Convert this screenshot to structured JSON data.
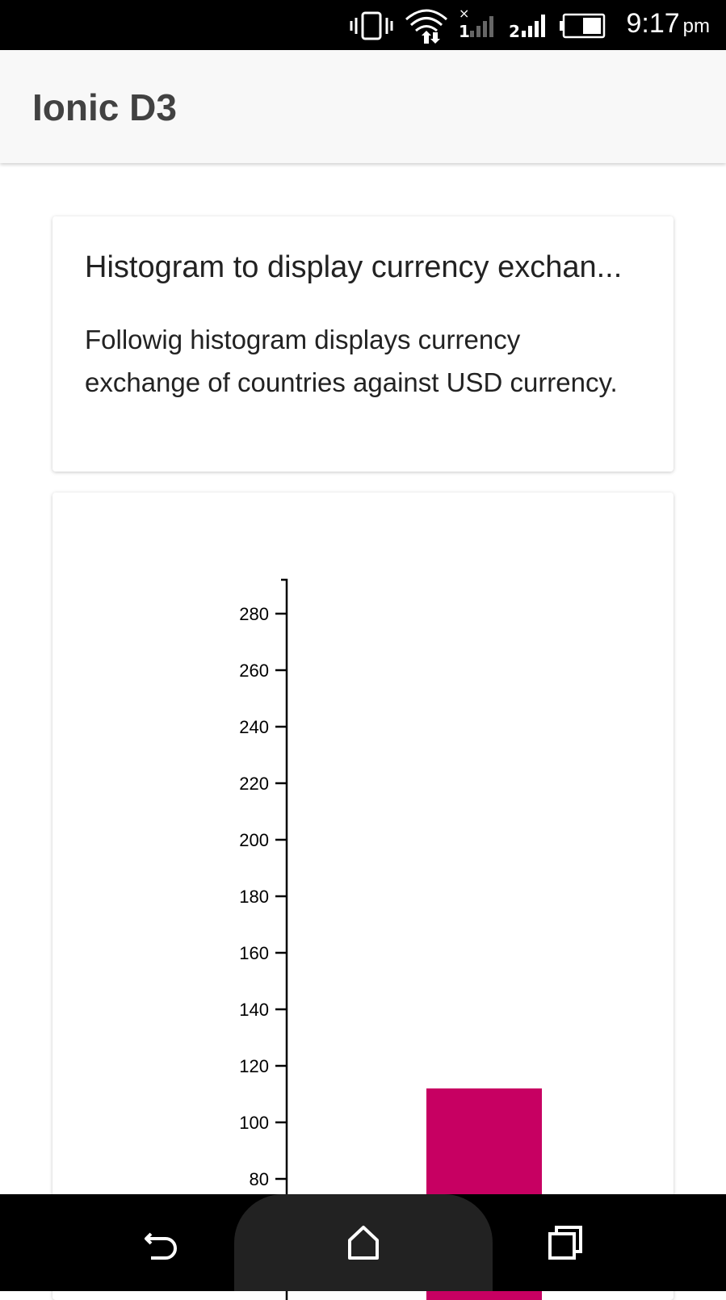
{
  "status_bar": {
    "time": "9:17",
    "ampm": "pm",
    "icons": [
      "vibrate-icon",
      "wifi-icon",
      "signal-sim1-icon",
      "signal-sim2-icon",
      "battery-icon"
    ],
    "sim1_label": "1",
    "sim2_label": "2"
  },
  "header": {
    "title": "Ionic D3"
  },
  "info_card": {
    "title": "Histogram to display currency exchan...",
    "description": "Followig histogram displays currency exchange of countries against USD currency."
  },
  "chart_data": {
    "type": "bar",
    "title": "",
    "xlabel": "",
    "ylabel": "",
    "y_ticks": [
      80,
      100,
      120,
      140,
      160,
      180,
      200,
      220,
      240,
      260,
      280
    ],
    "ylim_visible": [
      80,
      292
    ],
    "values": [
      112
    ],
    "bar_color": "#c70062"
  },
  "nav_bar": {
    "icons": [
      "back-icon",
      "home-icon",
      "recents-icon"
    ]
  }
}
